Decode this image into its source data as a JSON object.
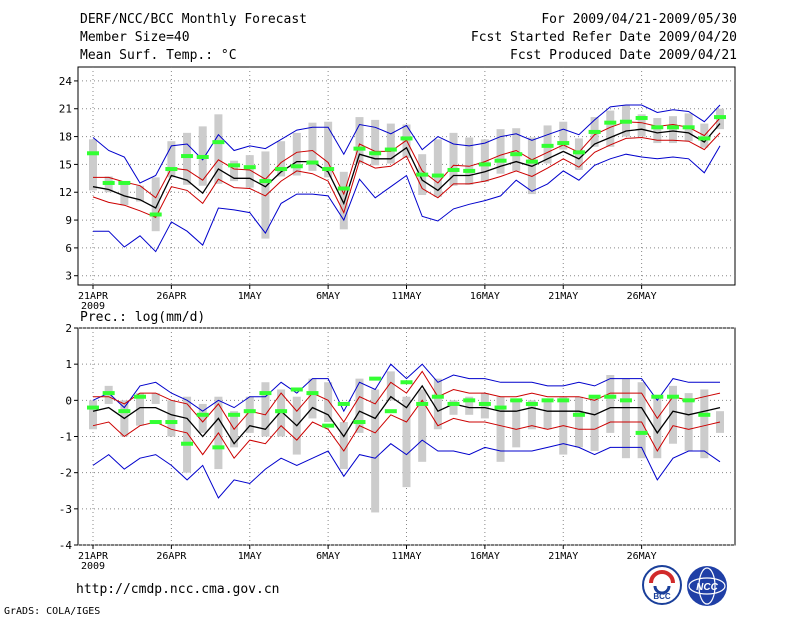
{
  "header": {
    "title": "DERF/NCC/BCC Monthly Forecast",
    "member_size": "Member Size=40",
    "period": "For 2009/04/21-2009/05/30",
    "refer_date": "Fcst Started Refer Date 2009/04/20",
    "produced_date": "Fcst Produced Date 2009/04/21"
  },
  "footer": {
    "url": "http://cmdp.ncc.cma.gov.cn",
    "grads": "GrADS: COLA/IGES",
    "logo_left": "BCC",
    "logo_right": "NCC"
  },
  "colors": {
    "mean": "#000000",
    "spread": "#cc0000",
    "range": "#0000cc",
    "obs": "#33ff33",
    "box": "#cccccc"
  },
  "chart_data": [
    {
      "type": "box-line",
      "title": "Mean Surf. Temp.: °C",
      "year_label": "2009",
      "x_ticks": [
        {
          "day": 0,
          "label": "21APR"
        },
        {
          "day": 5,
          "label": "26APR"
        },
        {
          "day": 10,
          "label": "1MAY"
        },
        {
          "day": 15,
          "label": "6MAY"
        },
        {
          "day": 20,
          "label": "11MAY"
        },
        {
          "day": 25,
          "label": "16MAY"
        },
        {
          "day": 30,
          "label": "21MAY"
        },
        {
          "day": 35,
          "label": "26MAY"
        }
      ],
      "ylim": [
        2,
        25.5
      ],
      "y_ticks": [
        3,
        6,
        9,
        12,
        15,
        18,
        21,
        24
      ],
      "mean": [
        12.6,
        12.3,
        11.6,
        11.2,
        10.3,
        13.8,
        13.3,
        11.9,
        14.5,
        13.5,
        13.5,
        12.6,
        14.2,
        15.3,
        15.3,
        14.2,
        10.8,
        16.1,
        15.6,
        15.6,
        16.8,
        13.3,
        12.2,
        13.8,
        13.8,
        14.2,
        14.8,
        15.3,
        14.8,
        15.6,
        16.4,
        15.6,
        17.2,
        17.9,
        18.6,
        18.8,
        18.4,
        18.6,
        18.4,
        17.4,
        19.4
      ],
      "upper": [
        13.6,
        13.6,
        13.1,
        12.7,
        11.4,
        14.6,
        14.4,
        13.3,
        15.5,
        14.5,
        14.4,
        13.4,
        15.2,
        16.3,
        16.5,
        15.2,
        11.8,
        17.2,
        16.4,
        16.4,
        17.6,
        14.3,
        13.0,
        14.9,
        14.8,
        15.3,
        16.0,
        16.5,
        15.5,
        16.3,
        17.1,
        16.3,
        18.2,
        19.0,
        19.6,
        19.5,
        19.1,
        19.3,
        19.0,
        18.1,
        20.0
      ],
      "lower": [
        11.5,
        10.9,
        10.6,
        10.0,
        9.3,
        12.6,
        12.2,
        10.8,
        13.4,
        12.5,
        12.4,
        11.6,
        13.2,
        14.3,
        14.0,
        13.2,
        9.8,
        15.4,
        14.6,
        14.8,
        15.9,
        12.4,
        11.4,
        12.9,
        12.9,
        13.2,
        13.7,
        14.3,
        13.7,
        14.6,
        15.6,
        14.7,
        16.3,
        17.1,
        17.8,
        17.9,
        17.6,
        17.6,
        17.5,
        16.6,
        18.4
      ],
      "max": [
        17.9,
        16.5,
        15.8,
        13.0,
        13.8,
        17.0,
        17.2,
        15.5,
        18.2,
        16.5,
        17.0,
        16.7,
        17.7,
        18.7,
        19.0,
        19.0,
        16.1,
        19.3,
        19.0,
        18.3,
        19.2,
        16.6,
        18.0,
        17.2,
        17.0,
        17.3,
        18.0,
        18.3,
        17.6,
        18.2,
        18.8,
        18.2,
        19.8,
        21.2,
        21.4,
        21.4,
        20.6,
        20.9,
        20.7,
        19.6,
        21.4
      ],
      "min": [
        7.8,
        7.8,
        6.1,
        7.3,
        5.6,
        8.8,
        7.8,
        6.3,
        10.3,
        10.1,
        9.8,
        7.6,
        10.8,
        11.8,
        11.8,
        11.6,
        9.0,
        13.4,
        11.4,
        12.6,
        13.8,
        9.4,
        8.9,
        10.2,
        10.7,
        11.1,
        11.6,
        13.3,
        12.1,
        12.9,
        14.3,
        13.3,
        14.9,
        15.6,
        16.1,
        15.8,
        15.6,
        15.8,
        15.6,
        14.1,
        17.0
      ],
      "box_low": [
        12.2,
        12.0,
        10.6,
        11.0,
        7.8,
        13.6,
        12.8,
        12.7,
        12.9,
        13.2,
        12.5,
        7.0,
        13.7,
        13.8,
        14.3,
        13.6,
        8.0,
        15.1,
        14.9,
        15.1,
        15.7,
        11.7,
        11.5,
        12.7,
        12.8,
        13.1,
        14.0,
        14.3,
        11.8,
        15.1,
        16.6,
        14.4,
        16.9,
        16.9,
        18.0,
        18.0,
        17.3,
        17.3,
        17.5,
        16.8,
        18.8
      ],
      "box_high": [
        17.7,
        13.7,
        13.0,
        12.7,
        13.6,
        17.5,
        18.4,
        19.1,
        20.4,
        15.4,
        16.0,
        16.4,
        17.5,
        18.4,
        19.5,
        19.6,
        14.2,
        20.1,
        19.8,
        19.4,
        19.3,
        16.1,
        17.7,
        18.4,
        17.9,
        17.7,
        18.8,
        18.9,
        17.9,
        19.2,
        19.6,
        17.8,
        20.1,
        20.8,
        21.4,
        20.4,
        20.0,
        20.2,
        20.5,
        19.4,
        21.0
      ],
      "observed": [
        16.2,
        13.0,
        13.0,
        null,
        9.6,
        14.5,
        15.9,
        15.8,
        17.4,
        14.9,
        14.7,
        13.2,
        14.5,
        14.8,
        15.2,
        14.5,
        12.4,
        16.7,
        16.2,
        16.6,
        17.8,
        13.9,
        13.8,
        14.4,
        14.3,
        15.0,
        15.4,
        16.1,
        15.3,
        17.0,
        17.3,
        16.3,
        18.5,
        19.5,
        19.6,
        20.0,
        19.0,
        19.0,
        19.0,
        17.8,
        20.1
      ]
    },
    {
      "type": "box-line",
      "title": "Prec.: log(mm/d)",
      "year_label": "2009",
      "x_ticks": [
        {
          "day": 0,
          "label": "21APR"
        },
        {
          "day": 5,
          "label": "26APR"
        },
        {
          "day": 10,
          "label": "1MAY"
        },
        {
          "day": 15,
          "label": "6MAY"
        },
        {
          "day": 20,
          "label": "11MAY"
        },
        {
          "day": 25,
          "label": "16MAY"
        },
        {
          "day": 30,
          "label": "21MAY"
        },
        {
          "day": 35,
          "label": "26MAY"
        }
      ],
      "ylim": [
        -4,
        2
      ],
      "y_ticks": [
        -4,
        -3,
        -2,
        -1,
        0,
        1,
        2
      ],
      "mean": [
        -0.3,
        -0.2,
        -0.5,
        -0.2,
        -0.2,
        -0.4,
        -0.5,
        -1.0,
        -0.5,
        -1.2,
        -0.7,
        -0.8,
        -0.3,
        -0.7,
        -0.2,
        -0.4,
        -1.0,
        -0.3,
        -0.5,
        0.1,
        -0.2,
        0.4,
        -0.3,
        -0.1,
        -0.2,
        -0.2,
        -0.3,
        -0.3,
        -0.2,
        -0.3,
        -0.3,
        -0.3,
        -0.4,
        -0.2,
        -0.2,
        -0.2,
        -0.9,
        -0.3,
        -0.4,
        -0.3,
        -0.2
      ],
      "upper": [
        0.1,
        0.1,
        -0.1,
        0.2,
        0.2,
        0.0,
        -0.1,
        -0.6,
        -0.1,
        -0.8,
        -0.3,
        -0.4,
        0.2,
        -0.3,
        0.2,
        0.0,
        -0.6,
        0.1,
        -0.1,
        0.5,
        0.2,
        0.8,
        0.1,
        0.3,
        0.2,
        0.2,
        0.1,
        0.1,
        0.2,
        0.1,
        0.1,
        0.1,
        0.0,
        0.2,
        0.2,
        0.2,
        -0.5,
        0.1,
        0.0,
        0.1,
        0.2
      ],
      "lower": [
        -0.7,
        -0.6,
        -1.0,
        -0.7,
        -0.6,
        -0.8,
        -0.9,
        -1.5,
        -0.9,
        -1.6,
        -1.1,
        -1.2,
        -0.7,
        -1.1,
        -0.6,
        -0.8,
        -1.4,
        -0.7,
        -0.9,
        -0.4,
        -0.6,
        0.0,
        -0.7,
        -0.5,
        -0.6,
        -0.6,
        -0.7,
        -0.8,
        -0.7,
        -0.8,
        -0.7,
        -0.8,
        -0.8,
        -0.6,
        -0.6,
        -0.6,
        -1.4,
        -0.7,
        -0.8,
        -0.7,
        -0.6
      ],
      "max": [
        0.0,
        0.2,
        -0.2,
        0.4,
        0.5,
        0.2,
        0.0,
        -0.3,
        0.0,
        -0.2,
        0.1,
        0.1,
        0.5,
        0.2,
        0.6,
        0.6,
        -0.3,
        0.5,
        0.3,
        1.0,
        0.6,
        1.0,
        0.5,
        0.7,
        0.6,
        0.6,
        0.5,
        0.5,
        0.5,
        0.4,
        0.4,
        0.5,
        0.4,
        0.6,
        0.6,
        0.6,
        0.0,
        0.6,
        0.5,
        0.5,
        0.5
      ],
      "min": [
        -1.8,
        -1.5,
        -1.9,
        -1.6,
        -1.5,
        -1.8,
        -2.2,
        -1.8,
        -2.7,
        -2.2,
        -2.3,
        -1.9,
        -1.6,
        -1.8,
        -1.6,
        -1.4,
        -2.1,
        -1.5,
        -1.6,
        -1.2,
        -1.5,
        -1.1,
        -1.4,
        -1.4,
        -1.5,
        -1.3,
        -1.4,
        -1.4,
        -1.4,
        -1.3,
        -1.2,
        -1.3,
        -1.5,
        -1.3,
        -1.3,
        -1.3,
        -2.2,
        -1.6,
        -1.4,
        -1.4,
        -1.7
      ],
      "box_low": [
        -0.8,
        -0.1,
        -1.0,
        -0.7,
        -0.1,
        -1.0,
        -2.0,
        -0.9,
        -1.9,
        -1.3,
        -0.9,
        -1.0,
        -1.0,
        -1.5,
        -0.5,
        -0.6,
        -1.9,
        -0.9,
        -3.1,
        0.0,
        -2.4,
        -1.7,
        -0.8,
        -0.4,
        -0.4,
        -0.5,
        -1.7,
        -1.3,
        -0.8,
        -0.8,
        -1.5,
        -1.3,
        -1.4,
        -0.9,
        -1.6,
        -1.6,
        -1.6,
        -1.2,
        -1.4,
        -1.6,
        -0.9
      ],
      "box_high": [
        0.0,
        0.4,
        0.0,
        0.2,
        0.2,
        0.0,
        0.1,
        -0.1,
        0.1,
        -0.3,
        0.1,
        0.5,
        0.3,
        0.1,
        0.6,
        0.5,
        -0.6,
        0.6,
        0.3,
        0.8,
        0.1,
        0.3,
        0.6,
        0.0,
        0.1,
        0.2,
        0.1,
        0.0,
        0.0,
        0.0,
        0.1,
        0.1,
        0.1,
        0.7,
        0.6,
        0.5,
        0.1,
        0.4,
        0.2,
        0.3,
        -0.3
      ],
      "observed": [
        -0.2,
        0.2,
        -0.3,
        0.1,
        -0.6,
        -0.6,
        -1.2,
        -0.4,
        -1.3,
        -0.4,
        -0.3,
        0.2,
        -0.3,
        0.3,
        0.2,
        -0.7,
        -0.1,
        -0.6,
        0.6,
        -0.3,
        0.5,
        -0.1,
        0.1,
        -0.1,
        0.0,
        -0.1,
        -0.2,
        0.0,
        -0.1,
        0.0,
        0.0,
        -0.4,
        0.1,
        0.1,
        0.0,
        -0.9,
        0.1,
        0.1,
        0.0,
        -0.4,
        null
      ]
    }
  ]
}
